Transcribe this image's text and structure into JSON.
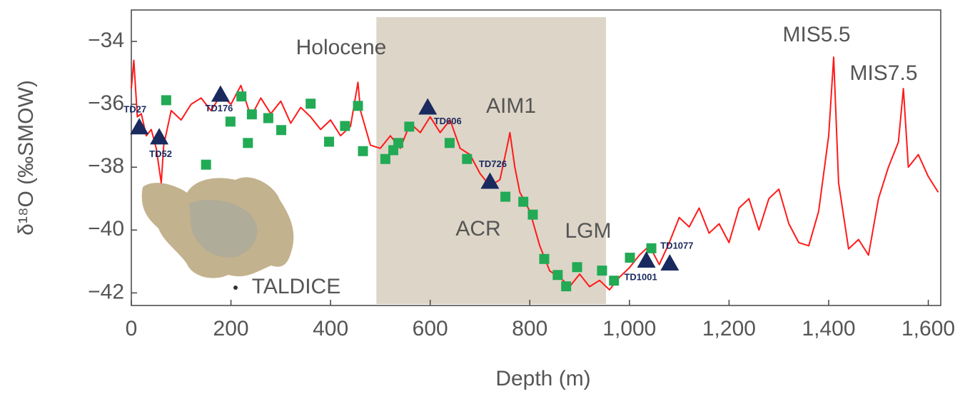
{
  "chart_data": {
    "type": "line",
    "x_label": "Depth (m)",
    "y_label": "δ¹⁸O (‰SMOW)",
    "xlim": [
      0,
      1625
    ],
    "ylim": [
      -42.4,
      -33
    ],
    "xticks": [
      0,
      200,
      400,
      600,
      800,
      {
        "value": 1000,
        "label": "1,000"
      },
      {
        "value": 1200,
        "label": "1,200"
      },
      {
        "value": 1400,
        "label": "1,400"
      },
      {
        "value": 1600,
        "label": "1,600"
      }
    ],
    "yticks": [
      {
        "value": -34,
        "label": "−34"
      },
      {
        "value": -36,
        "label": "−36"
      },
      {
        "value": -38,
        "label": "−38"
      },
      {
        "value": -40,
        "label": "−40"
      },
      {
        "value": -42,
        "label": "−42"
      }
    ],
    "shaded_region": {
      "x": [
        492,
        953
      ],
      "color": "#ddd5c8"
    },
    "annotations": [
      "Holocene",
      "AIM1",
      "ACR",
      "LGM",
      "MIS5.5",
      "MIS7.5",
      "TALDICE"
    ],
    "series": [
      {
        "type": "line",
        "color": "#ff1a1a",
        "x": [
          0,
          5,
          12,
          20,
          30,
          40,
          50,
          60,
          65,
          80,
          100,
          120,
          140,
          160,
          180,
          200,
          220,
          240,
          260,
          280,
          300,
          320,
          340,
          360,
          380,
          400,
          420,
          440,
          455,
          460,
          480,
          500,
          520,
          540,
          560,
          580,
          600,
          620,
          640,
          660,
          680,
          700,
          720,
          740,
          755,
          760,
          770,
          780,
          800,
          820,
          840,
          860,
          880,
          900,
          920,
          940,
          960,
          980,
          1000,
          1020,
          1040,
          1060,
          1080,
          1100,
          1120,
          1140,
          1160,
          1180,
          1200,
          1220,
          1240,
          1260,
          1280,
          1300,
          1320,
          1340,
          1360,
          1380,
          1400,
          1410,
          1420,
          1440,
          1460,
          1480,
          1500,
          1520,
          1540,
          1550,
          1560,
          1580,
          1600,
          1620
        ],
        "values": [
          -35.5,
          -34.6,
          -36.4,
          -36.3,
          -37.0,
          -36.8,
          -37.4,
          -38.5,
          -37.3,
          -36.2,
          -36.5,
          -36.0,
          -35.8,
          -36.2,
          -35.7,
          -36.0,
          -35.4,
          -36.4,
          -35.8,
          -36.3,
          -35.9,
          -36.6,
          -36.1,
          -36.4,
          -36.8,
          -36.5,
          -37.0,
          -36.7,
          -35.3,
          -36.2,
          -37.3,
          -37.4,
          -37.0,
          -37.4,
          -36.6,
          -36.9,
          -36.4,
          -36.9,
          -36.5,
          -37.4,
          -37.6,
          -38.2,
          -38.6,
          -38.4,
          -37.3,
          -36.9,
          -38.0,
          -38.8,
          -39.4,
          -40.5,
          -41.3,
          -41.5,
          -41.8,
          -41.4,
          -41.8,
          -41.6,
          -41.9,
          -41.5,
          -41.2,
          -40.8,
          -40.5,
          -41.1,
          -40.4,
          -39.6,
          -39.9,
          -39.3,
          -40.1,
          -39.8,
          -40.4,
          -39.3,
          -39.0,
          -40.0,
          -39.0,
          -38.7,
          -39.8,
          -40.4,
          -40.5,
          -39.4,
          -37.0,
          -34.5,
          -38.5,
          -40.6,
          -40.3,
          -40.8,
          -39.0,
          -38.0,
          -37.2,
          -35.5,
          -38.0,
          -37.6,
          -38.3,
          -38.8
        ]
      },
      {
        "type": "scatter",
        "marker": "square",
        "color": "#22aa55",
        "x": [
          70,
          150,
          199,
          221,
          234,
          242,
          275,
          301,
          360,
          397,
          429,
          455,
          465,
          510,
          526,
          536,
          558,
          639,
          674,
          751,
          787,
          806,
          829,
          856,
          873,
          895,
          945,
          969,
          1001,
          1044
        ],
        "values": [
          -35.87,
          -37.92,
          -36.55,
          -35.75,
          -37.23,
          -36.32,
          -36.44,
          -36.82,
          -35.98,
          -37.19,
          -36.69,
          -36.05,
          -37.49,
          -37.74,
          -37.46,
          -37.23,
          -36.71,
          -37.23,
          -37.74,
          -38.94,
          -39.1,
          -39.51,
          -40.92,
          -41.43,
          -41.79,
          -41.18,
          -41.29,
          -41.61,
          -40.88,
          -40.58
        ]
      },
      {
        "type": "scatter",
        "marker": "triangle",
        "color": "#1a2a5e",
        "x": [
          16,
          56,
          179,
          595,
          720,
          1034,
          1081
        ],
        "values": [
          -36.73,
          -37.05,
          -35.69,
          -36.1,
          -38.46,
          -40.97,
          -41.06
        ],
        "labels": [
          "TD27",
          "TD52",
          "TD176",
          "TD606",
          "TD726",
          "TD1001",
          "TD1077"
        ]
      }
    ]
  }
}
